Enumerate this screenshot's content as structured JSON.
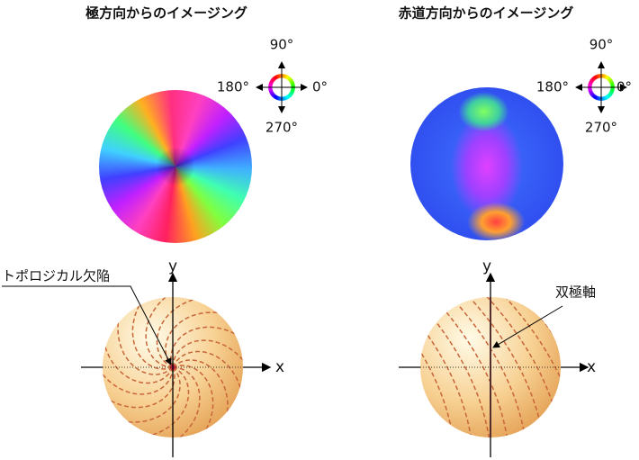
{
  "panels": [
    {
      "title": "極方向からのイメージング",
      "wheel": {
        "top": "90°",
        "left": "180°",
        "right": "0°",
        "bottom": "270°"
      },
      "annotation": "トポロジカル欠陥",
      "x_label": "x",
      "y_label": "y"
    },
    {
      "title": "赤道方向からのイメージング",
      "wheel": {
        "top": "90°",
        "left": "180°",
        "right": "0°",
        "bottom": "270°"
      },
      "annotation": "双極軸",
      "x_label": "x",
      "y_label": "y"
    }
  ]
}
